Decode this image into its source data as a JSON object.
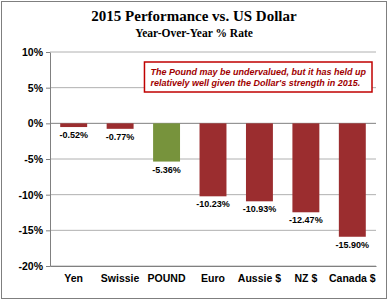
{
  "chart_data": {
    "type": "bar",
    "title": "2015 Performance vs. US Dollar",
    "subtitle": "Year-Over-Year % Rate",
    "annotation": "The Pound may be undervalued, but it has held up relatively well given the Dollar's strength in 2015.",
    "categories": [
      "Yen",
      "Swissie",
      "POUND",
      "Euro",
      "Aussie $",
      "NZ $",
      "Canada $"
    ],
    "values": [
      -0.52,
      -0.77,
      -5.36,
      -10.23,
      -10.93,
      -12.47,
      -15.9
    ],
    "value_labels": [
      "-0.52%",
      "-0.77%",
      "-5.36%",
      "-10.23%",
      "-10.93%",
      "-12.47%",
      "-15.90%"
    ],
    "colors": [
      "#9b2d2f",
      "#9b2d2f",
      "#77933c",
      "#9b2d2f",
      "#9b2d2f",
      "#9b2d2f",
      "#9b2d2f"
    ],
    "ylim": [
      -20,
      10
    ],
    "yticks": [
      {
        "value": 10,
        "label": "10%"
      },
      {
        "value": 5,
        "label": "5%"
      },
      {
        "value": 0,
        "label": "0%"
      },
      {
        "value": -5,
        "label": "-5%"
      },
      {
        "value": -10,
        "label": "-10%"
      },
      {
        "value": -15,
        "label": "-15%"
      },
      {
        "value": -20,
        "label": "-20%"
      }
    ],
    "grid": true,
    "data_labels": true
  }
}
